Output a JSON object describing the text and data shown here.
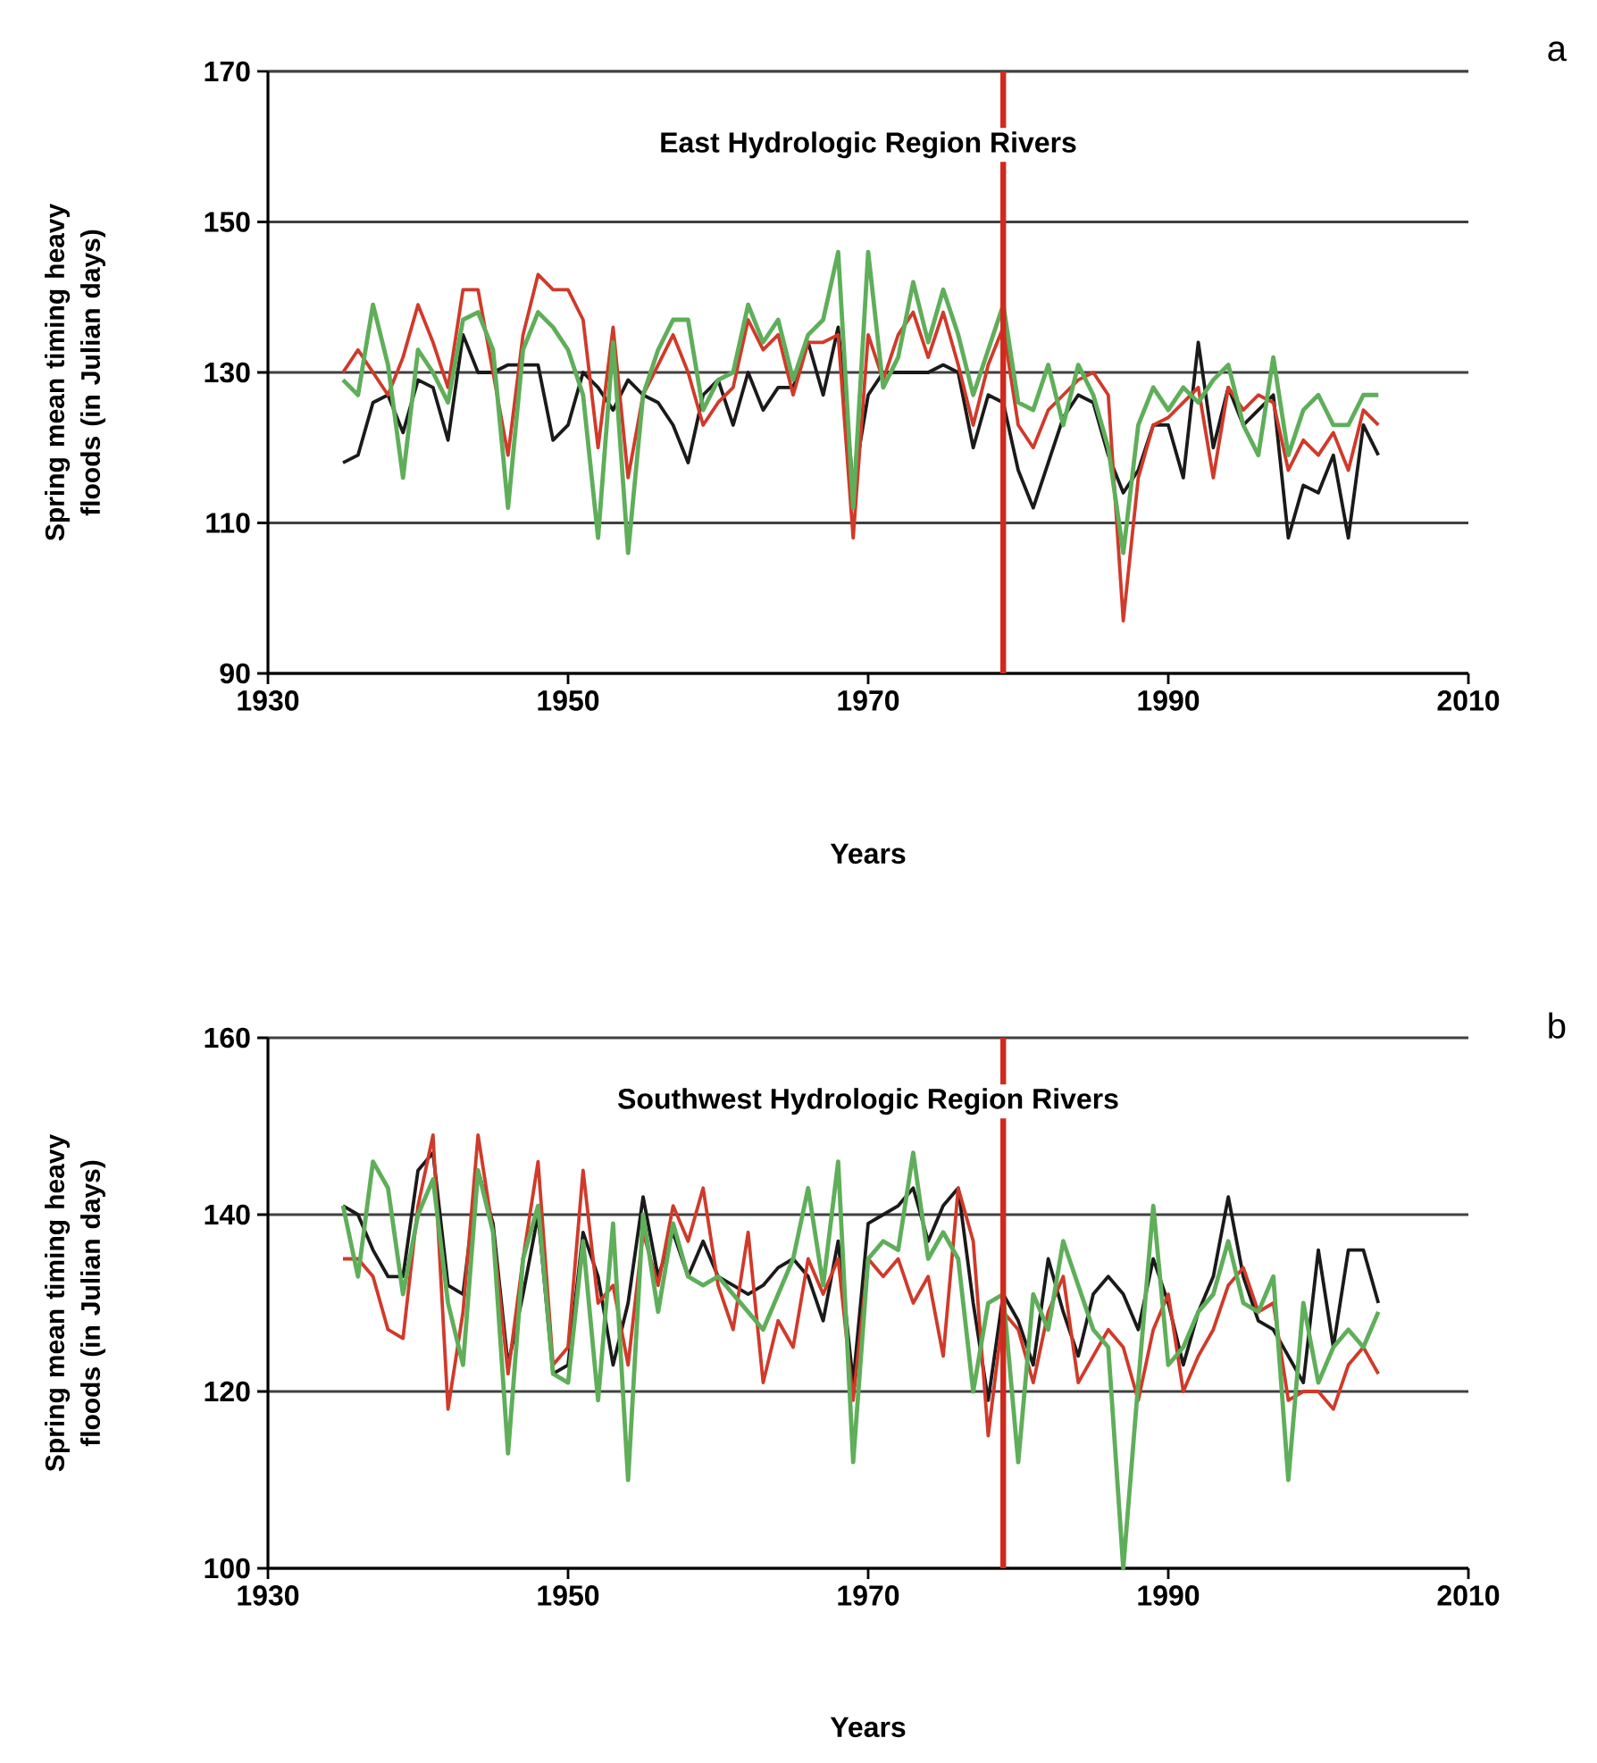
{
  "chart_data": [
    {
      "type": "line",
      "title": "East Hydrologic Region Rivers",
      "xlabel": "Years",
      "ylabel": "Spring mean timing heavy floods (in Julian days)",
      "annotations": [
        "a"
      ],
      "x": [
        1935,
        1936,
        1937,
        1938,
        1939,
        1940,
        1941,
        1942,
        1943,
        1944,
        1945,
        1946,
        1947,
        1948,
        1949,
        1950,
        1951,
        1952,
        1953,
        1954,
        1955,
        1956,
        1957,
        1958,
        1959,
        1960,
        1961,
        1962,
        1963,
        1964,
        1965,
        1966,
        1967,
        1968,
        1969,
        1970,
        1971,
        1972,
        1973,
        1974,
        1975,
        1976,
        1977,
        1978,
        1979,
        1980,
        1981,
        1982,
        1983,
        1984,
        1985,
        1986,
        1987,
        1988,
        1989,
        1990,
        1991,
        1992,
        1993,
        1994,
        1995,
        1996,
        1997,
        1998,
        1999,
        2000,
        2001,
        2002,
        2003,
        2004
      ],
      "series": [
        {
          "color": "#1a1a1a",
          "values": [
            118,
            119,
            126,
            127,
            122,
            129,
            128,
            121,
            135,
            130,
            130,
            131,
            131,
            131,
            121,
            123,
            130,
            128,
            125,
            129,
            127,
            126,
            123,
            118,
            127,
            129,
            123,
            130,
            125,
            128,
            128,
            134,
            127,
            136,
            115,
            127,
            130,
            130,
            130,
            130,
            131,
            130,
            120,
            127,
            126,
            117,
            112,
            118,
            124,
            127,
            126,
            119,
            114,
            117,
            123,
            123,
            116,
            134,
            120,
            128,
            123,
            125,
            127,
            108,
            115,
            114,
            119,
            108,
            123,
            119
          ]
        },
        {
          "color": "#d03a2a",
          "values": [
            130,
            133,
            130,
            127,
            132,
            139,
            134,
            128,
            141,
            141,
            130,
            119,
            135,
            143,
            141,
            141,
            137,
            120,
            136,
            116,
            127,
            131,
            135,
            130,
            123,
            126,
            128,
            137,
            133,
            135,
            127,
            134,
            134,
            135,
            108,
            135,
            129,
            135,
            138,
            132,
            138,
            131,
            123,
            131,
            136,
            123,
            120,
            125,
            127,
            129,
            130,
            127,
            97,
            116,
            123,
            124,
            126,
            128,
            116,
            128,
            125,
            127,
            126,
            117,
            121,
            119,
            122,
            117,
            125,
            123
          ]
        },
        {
          "color": "#5fae5a",
          "values": [
            129,
            127,
            139,
            131,
            116,
            133,
            130,
            126,
            137,
            138,
            133,
            112,
            133,
            138,
            136,
            133,
            127,
            108,
            134,
            106,
            127,
            133,
            137,
            137,
            125,
            129,
            130,
            139,
            134,
            137,
            129,
            135,
            137,
            146,
            112,
            146,
            128,
            132,
            142,
            134,
            141,
            135,
            127,
            133,
            139,
            126,
            125,
            131,
            123,
            131,
            127,
            120,
            106,
            123,
            128,
            125,
            128,
            126,
            129,
            131,
            123,
            119,
            132,
            119,
            125,
            127,
            123,
            123,
            127,
            127
          ]
        }
      ],
      "ref_lines": [
        {
          "axis": "x",
          "value": 1979,
          "color": "#d02a1e"
        }
      ],
      "xlim": [
        1930,
        2010
      ],
      "ylim": [
        90,
        170
      ],
      "xticks": [
        1930,
        1950,
        1970,
        1990,
        2010
      ],
      "yticks": [
        90,
        110,
        130,
        150,
        170
      ],
      "grid": "y",
      "marker": "none",
      "line_style": "solid"
    },
    {
      "type": "line",
      "title": "Southwest Hydrologic Region Rivers",
      "xlabel": "Years",
      "ylabel": "Spring mean timing heavy floods (in Julian days)",
      "annotations": [
        "b"
      ],
      "x": [
        1935,
        1936,
        1937,
        1938,
        1939,
        1940,
        1941,
        1942,
        1943,
        1944,
        1945,
        1946,
        1947,
        1948,
        1949,
        1950,
        1951,
        1952,
        1953,
        1954,
        1955,
        1956,
        1957,
        1958,
        1959,
        1960,
        1961,
        1962,
        1963,
        1964,
        1965,
        1966,
        1967,
        1968,
        1969,
        1970,
        1971,
        1972,
        1973,
        1974,
        1975,
        1976,
        1977,
        1978,
        1979,
        1980,
        1981,
        1982,
        1983,
        1984,
        1985,
        1986,
        1987,
        1988,
        1989,
        1990,
        1991,
        1992,
        1993,
        1994,
        1995,
        1996,
        1997,
        1998,
        1999,
        2000,
        2001,
        2002,
        2003,
        2004
      ],
      "series": [
        {
          "color": "#1a1a1a",
          "values": [
            141,
            140,
            136,
            133,
            133,
            145,
            147,
            132,
            131,
            145,
            139,
            123,
            131,
            140,
            122,
            123,
            138,
            133,
            123,
            130,
            142,
            133,
            138,
            133,
            137,
            133,
            132,
            131,
            132,
            134,
            135,
            133,
            128,
            137,
            121,
            139,
            140,
            141,
            143,
            137,
            141,
            143,
            130,
            119,
            131,
            128,
            123,
            135,
            129,
            124,
            131,
            133,
            131,
            127,
            135,
            130,
            123,
            129,
            133,
            142,
            133,
            128,
            127,
            124,
            121,
            136,
            125,
            136,
            136,
            130
          ]
        },
        {
          "color": "#d03a2a",
          "values": [
            135,
            135,
            133,
            127,
            126,
            141,
            149,
            118,
            129,
            149,
            138,
            122,
            135,
            146,
            123,
            125,
            145,
            130,
            132,
            123,
            138,
            132,
            141,
            137,
            143,
            132,
            127,
            138,
            121,
            128,
            125,
            135,
            131,
            135,
            119,
            135,
            133,
            135,
            130,
            133,
            124,
            143,
            137,
            115,
            129,
            127,
            121,
            129,
            133,
            121,
            124,
            127,
            125,
            119,
            127,
            131,
            120,
            124,
            127,
            132,
            134,
            129,
            130,
            119,
            120,
            120,
            118,
            123,
            125,
            122
          ]
        },
        {
          "color": "#5fae5a",
          "values": [
            141,
            133,
            146,
            143,
            131,
            140,
            144,
            130,
            123,
            145,
            138,
            113,
            135,
            141,
            122,
            121,
            137,
            119,
            139,
            110,
            140,
            129,
            139,
            133,
            132,
            133,
            131,
            129,
            127,
            131,
            135,
            143,
            132,
            146,
            112,
            135,
            137,
            136,
            147,
            135,
            138,
            135,
            120,
            130,
            131,
            112,
            131,
            127,
            137,
            132,
            127,
            125,
            100,
            121,
            141,
            123,
            125,
            129,
            131,
            137,
            130,
            129,
            133,
            110,
            130,
            121,
            125,
            127,
            125,
            129
          ]
        }
      ],
      "ref_lines": [
        {
          "axis": "x",
          "value": 1979,
          "color": "#d02a1e"
        }
      ],
      "xlim": [
        1930,
        2010
      ],
      "ylim": [
        100,
        160
      ],
      "xticks": [
        1930,
        1950,
        1970,
        1990,
        2010
      ],
      "yticks": [
        100,
        120,
        140,
        160
      ],
      "grid": "y",
      "marker": "none",
      "line_style": "solid"
    }
  ]
}
